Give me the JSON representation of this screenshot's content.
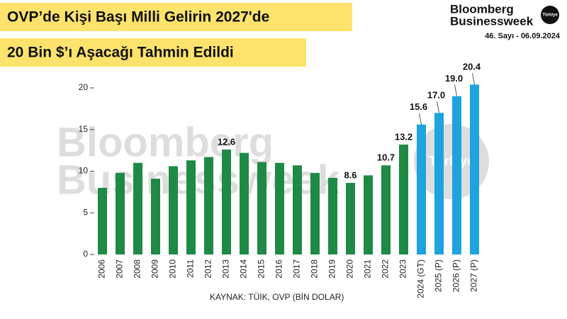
{
  "chart_data": {
    "type": "bar",
    "title_lines": [
      "OVP’de Kişi Başı Milli Gelirin 2027'de",
      "20 Bin $’ı Aşacağı Tahmin Edildi"
    ],
    "brand": [
      "Bloomberg",
      "Businessweek",
      "Türkiye"
    ],
    "issue": "46. Sayı - 06.09.2024",
    "watermark": [
      "Bloomberg",
      "Businessweek",
      "Türkiye"
    ],
    "source": "KAYNAK: TÜİK, OVP (BİN DOLAR)",
    "categories": [
      "2006",
      "2007",
      "2008",
      "2009",
      "2010",
      "2011",
      "2012",
      "2013",
      "2014",
      "2015",
      "2016",
      "2017",
      "2018",
      "2019",
      "2020",
      "2021",
      "2022",
      "2023",
      "2024 (GT)",
      "2025 (P)",
      "2026 (P)",
      "2027 (P)"
    ],
    "values": [
      8.0,
      9.8,
      11.0,
      9.1,
      10.6,
      11.3,
      11.7,
      12.6,
      12.2,
      11.1,
      11.0,
      10.7,
      9.8,
      9.2,
      8.6,
      9.5,
      10.7,
      13.2,
      15.6,
      17.0,
      19.0,
      20.4
    ],
    "value_labels": [
      null,
      null,
      null,
      null,
      null,
      null,
      null,
      "12.6",
      null,
      null,
      null,
      null,
      null,
      null,
      "8.6",
      null,
      "10.7",
      "13.2",
      "15.6",
      "17.0",
      "19.0",
      "20.4"
    ],
    "colors": [
      "#1f8a45",
      "#1f8a45",
      "#1f8a45",
      "#1f8a45",
      "#1f8a45",
      "#1f8a45",
      "#1f8a45",
      "#1f8a45",
      "#1f8a45",
      "#1f8a45",
      "#1f8a45",
      "#1f8a45",
      "#1f8a45",
      "#1f8a45",
      "#1f8a45",
      "#1f8a45",
      "#1f8a45",
      "#1f8a45",
      "#1ea3df",
      "#1ea3df",
      "#1ea3df",
      "#1ea3df"
    ],
    "ylim": [
      0,
      21
    ],
    "yticks": [
      0,
      5,
      10,
      15,
      20
    ]
  }
}
